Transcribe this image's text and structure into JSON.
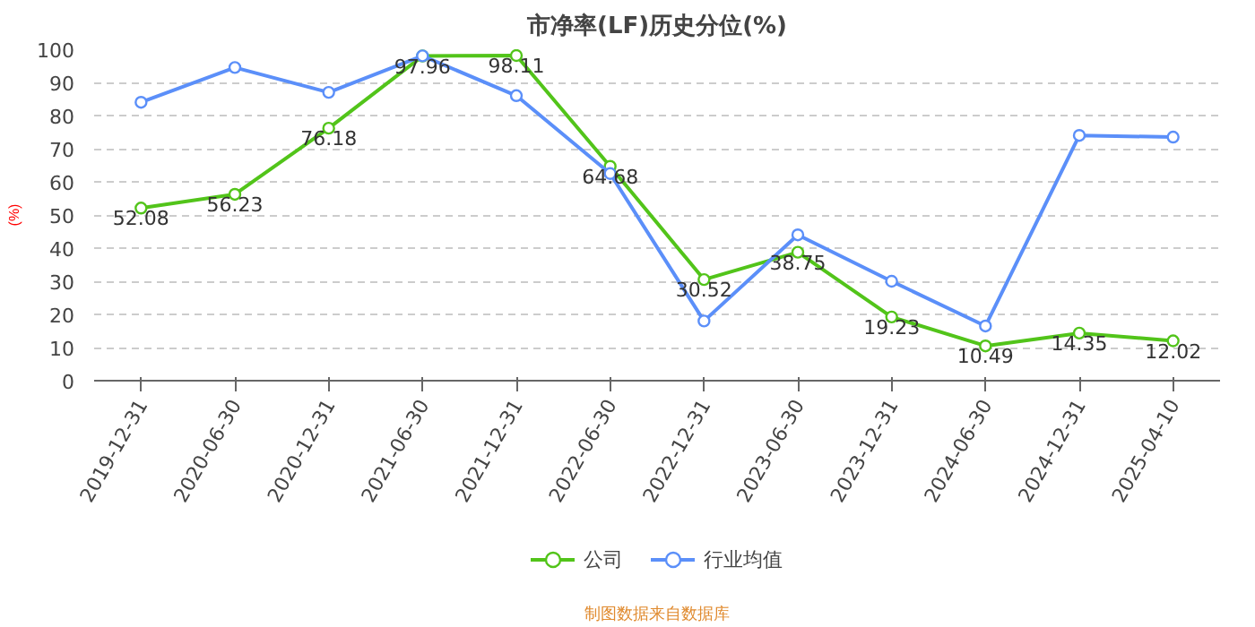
{
  "chart_data": {
    "type": "line",
    "title": "市净率(LF)历史分位(%)",
    "ylabel": "(%)",
    "categories": [
      "2019-12-31",
      "2020-06-30",
      "2020-12-31",
      "2021-06-30",
      "2021-12-31",
      "2022-06-30",
      "2022-12-31",
      "2023-06-30",
      "2023-12-31",
      "2024-06-30",
      "2024-12-31",
      "2025-04-10"
    ],
    "series": [
      {
        "name": "公司",
        "color": "#52c41a",
        "values": [
          52.08,
          56.23,
          76.18,
          97.96,
          98.11,
          64.68,
          30.52,
          38.75,
          19.23,
          10.49,
          14.35,
          12.02
        ],
        "value_labels": [
          "52.08",
          "56.23",
          "76.18",
          "97.96",
          "98.11",
          "64.68",
          "30.52",
          "38.75",
          "19.23",
          "10.49",
          "14.35",
          "12.02"
        ]
      },
      {
        "name": "行业均值",
        "color": "#5b8ff9",
        "values": [
          84,
          94.5,
          87,
          98,
          86,
          62.5,
          18,
          44,
          30,
          16.5,
          74,
          73.5
        ]
      }
    ],
    "ylim": [
      0,
      100
    ],
    "yticks": [
      0,
      10,
      20,
      30,
      40,
      50,
      60,
      70,
      80,
      90,
      100
    ],
    "grid": "y",
    "legend": "bottom",
    "marker": "circle",
    "line_style": "solid",
    "annotations": [
      "制图数据来自数据库"
    ]
  }
}
